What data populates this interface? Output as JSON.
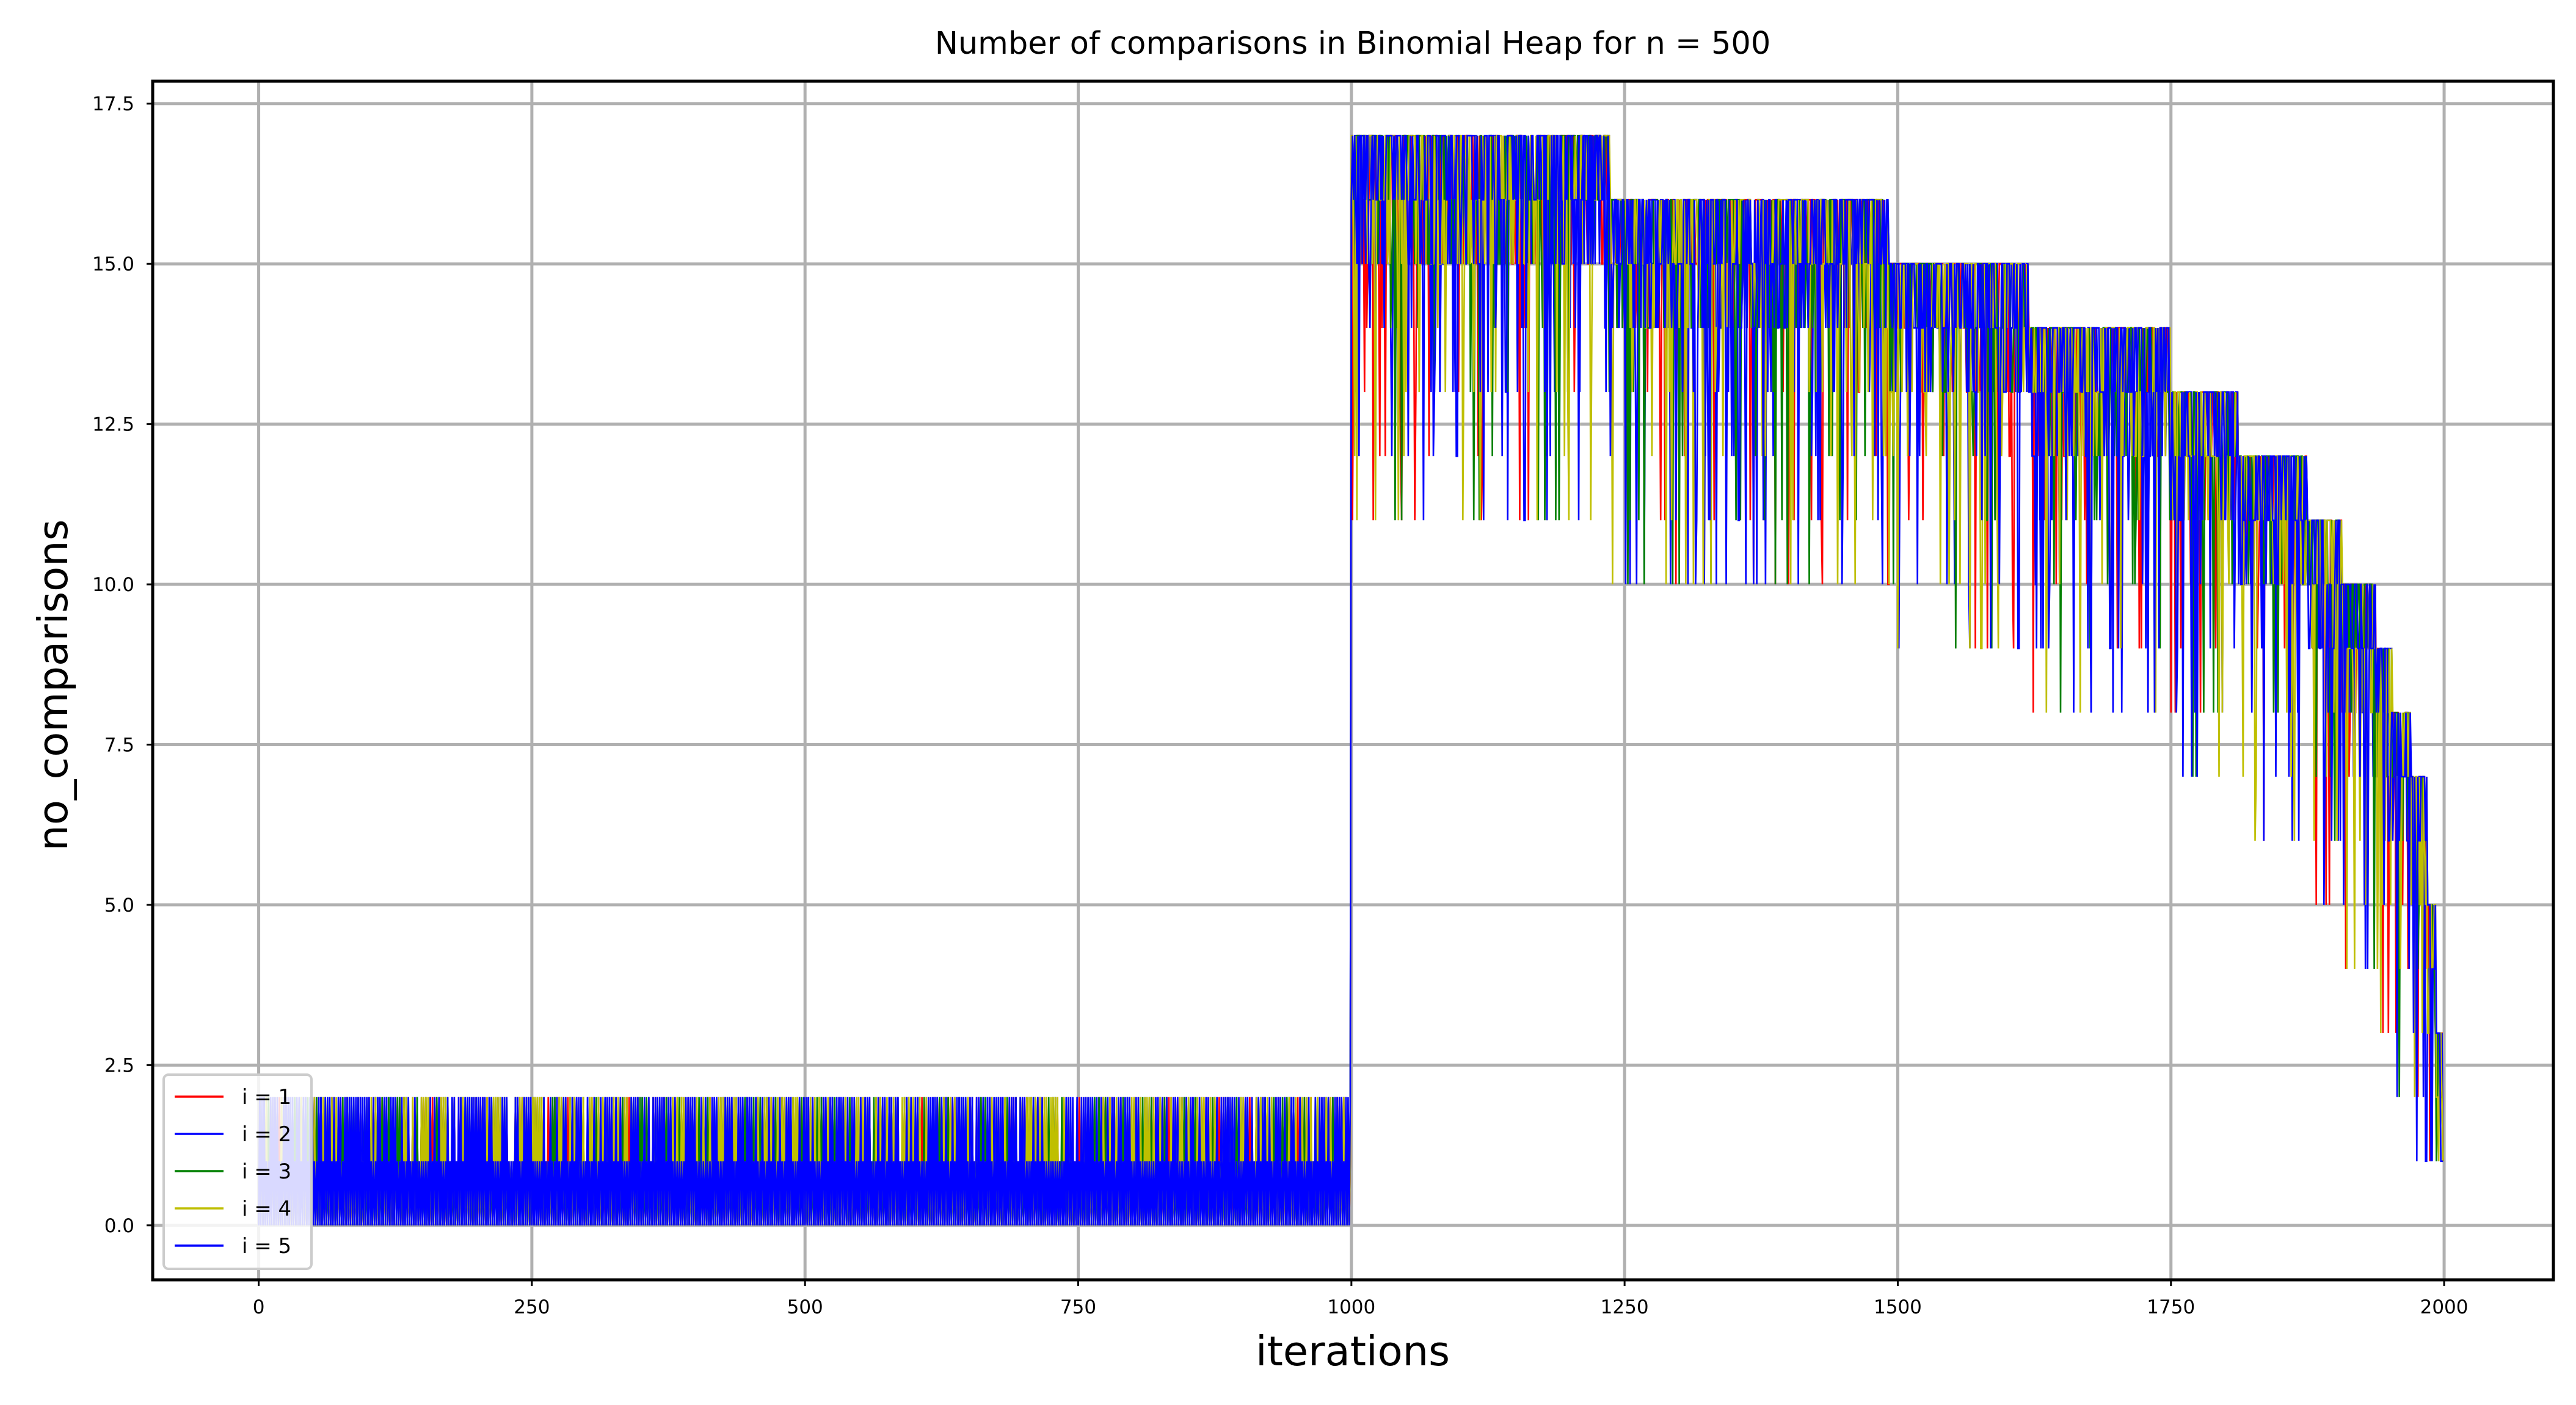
{
  "chart_data": {
    "type": "line",
    "title": "Number of comparisons in Binomial Heap for n = 500",
    "xlabel": "iterations",
    "ylabel": "no_comparisons",
    "xlim": [
      -97,
      2100
    ],
    "ylim": [
      -0.85,
      17.85
    ],
    "xticks": [
      0,
      250,
      500,
      750,
      1000,
      1250,
      1500,
      1750,
      2000
    ],
    "yticks": [
      0.0,
      2.5,
      5.0,
      7.5,
      10.0,
      12.5,
      15.0,
      17.5
    ],
    "xtick_labels": [
      "0",
      "250",
      "500",
      "750",
      "1000",
      "1250",
      "1500",
      "1750",
      "2000"
    ],
    "ytick_labels": [
      "0.0",
      "2.5",
      "5.0",
      "7.5",
      "10.0",
      "12.5",
      "15.0",
      "17.5"
    ],
    "grid": true,
    "legend": "lower-left",
    "n_points": 2000,
    "series": [
      {
        "name": "i = 1",
        "color": "#ff0000",
        "seed": 11
      },
      {
        "name": "i = 2",
        "color": "#0000ff",
        "seed": 23
      },
      {
        "name": "i = 3",
        "color": "#008000",
        "seed": 37
      },
      {
        "name": "i = 4",
        "color": "#bfbf00",
        "seed": 41
      },
      {
        "name": "i = 5",
        "color": "#0000ff",
        "seed": 53
      }
    ],
    "insert_phase": {
      "x_range": [
        0,
        1000
      ],
      "value_levels": [
        0,
        1,
        2
      ],
      "description_values": "values alternate between 0, 1 and 2"
    },
    "delete_phase": {
      "x_range": [
        1000,
        2000
      ],
      "plateaus": [
        {
          "x_start": 1000,
          "x_end": 1237,
          "max": 17
        },
        {
          "x_start": 1237,
          "x_end": 1492,
          "max": 16
        },
        {
          "x_start": 1492,
          "x_end": 1620,
          "max": 15
        },
        {
          "x_start": 1620,
          "x_end": 1750,
          "max": 14
        },
        {
          "x_start": 1750,
          "x_end": 1812,
          "max": 13
        },
        {
          "x_start": 1812,
          "x_end": 1875,
          "max": 12
        },
        {
          "x_start": 1875,
          "x_end": 1907,
          "max": 11
        },
        {
          "x_start": 1907,
          "x_end": 1938,
          "max": 10
        },
        {
          "x_start": 1938,
          "x_end": 1953,
          "max": 9
        },
        {
          "x_start": 1953,
          "x_end": 1970,
          "max": 8
        },
        {
          "x_start": 1970,
          "x_end": 1985,
          "max": 7
        },
        {
          "x_start": 1985,
          "x_end": 1993,
          "max": 5
        },
        {
          "x_start": 1993,
          "x_end": 2000,
          "max": 3
        }
      ],
      "final_value": 1
    }
  }
}
